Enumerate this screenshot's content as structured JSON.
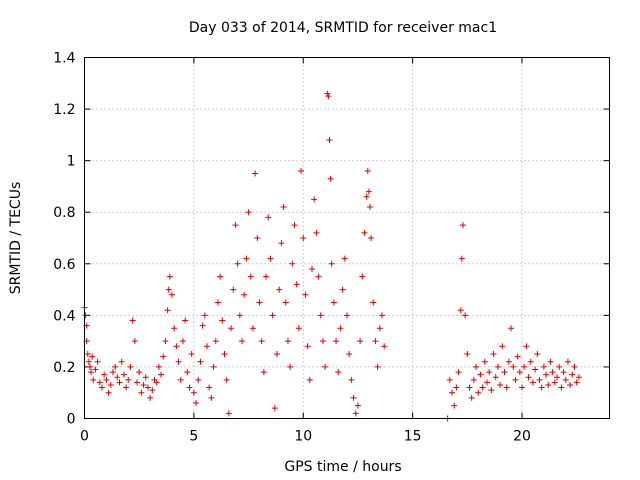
{
  "chart_data": {
    "type": "scatter",
    "title": "Day 033 of 2014, SRMTID for receiver mac1",
    "xlabel": "GPS time / hours",
    "ylabel": "SRMTID / TECUs",
    "xlim": [
      0,
      24
    ],
    "ylim": [
      0,
      1.4
    ],
    "xticks": [
      0,
      5,
      10,
      15,
      20
    ],
    "yticks": [
      0,
      0.2,
      0.4,
      0.6,
      0.8,
      1,
      1.2,
      1.4
    ],
    "xtick_labels": [
      "0",
      "5",
      "10",
      "15",
      "20"
    ],
    "ytick_labels": [
      "0",
      "0.2",
      "0.4",
      "0.6",
      "0.8",
      "1",
      "1.2",
      "1.4"
    ],
    "marker": "+",
    "color": "#e00000",
    "grid": true,
    "series": [
      {
        "name": "mac1",
        "points": [
          [
            0.0,
            0.43
          ],
          [
            0.05,
            0.4
          ],
          [
            0.1,
            0.36
          ],
          [
            0.1,
            0.3
          ],
          [
            0.15,
            0.25
          ],
          [
            0.2,
            0.22
          ],
          [
            0.25,
            0.2
          ],
          [
            0.3,
            0.18
          ],
          [
            0.35,
            0.24
          ],
          [
            0.4,
            0.15
          ],
          [
            0.5,
            0.19
          ],
          [
            0.6,
            0.22
          ],
          [
            0.7,
            0.14
          ],
          [
            0.8,
            0.12
          ],
          [
            0.9,
            0.17
          ],
          [
            1.0,
            0.15
          ],
          [
            1.1,
            0.1
          ],
          [
            1.2,
            0.13
          ],
          [
            1.3,
            0.18
          ],
          [
            1.4,
            0.2
          ],
          [
            1.5,
            0.16
          ],
          [
            1.6,
            0.14
          ],
          [
            1.7,
            0.22
          ],
          [
            1.8,
            0.17
          ],
          [
            1.9,
            0.12
          ],
          [
            2.0,
            0.15
          ],
          [
            2.1,
            0.2
          ],
          [
            2.2,
            0.38
          ],
          [
            2.3,
            0.3
          ],
          [
            2.4,
            0.14
          ],
          [
            2.5,
            0.18
          ],
          [
            2.6,
            0.1
          ],
          [
            2.7,
            0.13
          ],
          [
            2.8,
            0.16
          ],
          [
            2.9,
            0.12
          ],
          [
            3.0,
            0.08
          ],
          [
            3.1,
            0.11
          ],
          [
            3.2,
            0.15
          ],
          [
            3.3,
            0.14
          ],
          [
            3.4,
            0.2
          ],
          [
            3.5,
            0.17
          ],
          [
            3.6,
            0.24
          ],
          [
            3.7,
            0.3
          ],
          [
            3.8,
            0.42
          ],
          [
            3.85,
            0.5
          ],
          [
            3.9,
            0.55
          ],
          [
            4.0,
            0.48
          ],
          [
            4.1,
            0.35
          ],
          [
            4.2,
            0.28
          ],
          [
            4.3,
            0.22
          ],
          [
            4.4,
            0.15
          ],
          [
            4.5,
            0.3
          ],
          [
            4.6,
            0.38
          ],
          [
            4.7,
            0.18
          ],
          [
            4.8,
            0.12
          ],
          [
            4.9,
            0.25
          ],
          [
            5.0,
            0.1
          ],
          [
            5.1,
            0.06
          ],
          [
            5.2,
            0.15
          ],
          [
            5.3,
            0.22
          ],
          [
            5.4,
            0.36
          ],
          [
            5.5,
            0.4
          ],
          [
            5.6,
            0.28
          ],
          [
            5.7,
            0.12
          ],
          [
            5.8,
            0.08
          ],
          [
            5.9,
            0.2
          ],
          [
            6.0,
            0.3
          ],
          [
            6.1,
            0.45
          ],
          [
            6.2,
            0.55
          ],
          [
            6.3,
            0.38
          ],
          [
            6.4,
            0.25
          ],
          [
            6.5,
            0.15
          ],
          [
            6.6,
            0.02
          ],
          [
            6.7,
            0.35
          ],
          [
            6.8,
            0.5
          ],
          [
            6.9,
            0.75
          ],
          [
            7.0,
            0.6
          ],
          [
            7.1,
            0.4
          ],
          [
            7.2,
            0.3
          ],
          [
            7.3,
            0.48
          ],
          [
            7.4,
            0.62
          ],
          [
            7.5,
            0.8
          ],
          [
            7.6,
            0.55
          ],
          [
            7.7,
            0.35
          ],
          [
            7.8,
            0.95
          ],
          [
            7.9,
            0.7
          ],
          [
            8.0,
            0.45
          ],
          [
            8.1,
            0.3
          ],
          [
            8.2,
            0.18
          ],
          [
            8.3,
            0.55
          ],
          [
            8.4,
            0.78
          ],
          [
            8.5,
            0.62
          ],
          [
            8.6,
            0.4
          ],
          [
            8.7,
            0.04
          ],
          [
            8.8,
            0.25
          ],
          [
            8.9,
            0.5
          ],
          [
            9.0,
            0.68
          ],
          [
            9.1,
            0.82
          ],
          [
            9.2,
            0.45
          ],
          [
            9.3,
            0.3
          ],
          [
            9.4,
            0.2
          ],
          [
            9.5,
            0.6
          ],
          [
            9.6,
            0.75
          ],
          [
            9.7,
            0.52
          ],
          [
            9.8,
            0.35
          ],
          [
            9.9,
            0.96
          ],
          [
            10.0,
            0.7
          ],
          [
            10.1,
            0.48
          ],
          [
            10.2,
            0.28
          ],
          [
            10.3,
            0.15
          ],
          [
            10.4,
            0.58
          ],
          [
            10.5,
            0.85
          ],
          [
            10.6,
            0.72
          ],
          [
            10.7,
            0.55
          ],
          [
            10.8,
            0.4
          ],
          [
            10.9,
            0.3
          ],
          [
            11.0,
            0.2
          ],
          [
            11.1,
            1.26
          ],
          [
            11.15,
            1.25
          ],
          [
            11.2,
            1.08
          ],
          [
            11.25,
            0.93
          ],
          [
            11.3,
            0.6
          ],
          [
            11.4,
            0.45
          ],
          [
            11.5,
            0.3
          ],
          [
            11.6,
            0.18
          ],
          [
            11.7,
            0.35
          ],
          [
            11.8,
            0.5
          ],
          [
            11.9,
            0.62
          ],
          [
            12.0,
            0.4
          ],
          [
            12.1,
            0.25
          ],
          [
            12.2,
            0.15
          ],
          [
            12.3,
            0.08
          ],
          [
            12.4,
            0.02
          ],
          [
            12.5,
            0.05
          ],
          [
            12.6,
            0.3
          ],
          [
            12.7,
            0.55
          ],
          [
            12.8,
            0.72
          ],
          [
            12.9,
            0.86
          ],
          [
            12.95,
            0.96
          ],
          [
            13.0,
            0.88
          ],
          [
            13.05,
            0.82
          ],
          [
            13.1,
            0.7
          ],
          [
            13.2,
            0.45
          ],
          [
            13.3,
            0.3
          ],
          [
            13.4,
            0.2
          ],
          [
            13.5,
            0.35
          ],
          [
            13.6,
            0.4
          ],
          [
            13.7,
            0.28
          ],
          [
            16.6,
            0.0
          ],
          [
            16.7,
            0.15
          ],
          [
            16.8,
            0.1
          ],
          [
            16.9,
            0.05
          ],
          [
            17.0,
            0.12
          ],
          [
            17.1,
            0.18
          ],
          [
            17.2,
            0.42
          ],
          [
            17.25,
            0.62
          ],
          [
            17.3,
            0.75
          ],
          [
            17.4,
            0.4
          ],
          [
            17.5,
            0.25
          ],
          [
            17.6,
            0.12
          ],
          [
            17.7,
            0.08
          ],
          [
            17.8,
            0.15
          ],
          [
            17.9,
            0.2
          ],
          [
            18.0,
            0.1
          ],
          [
            18.1,
            0.17
          ],
          [
            18.2,
            0.12
          ],
          [
            18.3,
            0.22
          ],
          [
            18.4,
            0.14
          ],
          [
            18.5,
            0.18
          ],
          [
            18.6,
            0.11
          ],
          [
            18.7,
            0.25
          ],
          [
            18.8,
            0.16
          ],
          [
            18.9,
            0.2
          ],
          [
            19.0,
            0.13
          ],
          [
            19.1,
            0.28
          ],
          [
            19.2,
            0.18
          ],
          [
            19.3,
            0.12
          ],
          [
            19.4,
            0.22
          ],
          [
            19.5,
            0.35
          ],
          [
            19.6,
            0.2
          ],
          [
            19.7,
            0.15
          ],
          [
            19.8,
            0.24
          ],
          [
            19.9,
            0.18
          ],
          [
            20.0,
            0.12
          ],
          [
            20.1,
            0.2
          ],
          [
            20.2,
            0.28
          ],
          [
            20.3,
            0.16
          ],
          [
            20.4,
            0.22
          ],
          [
            20.5,
            0.14
          ],
          [
            20.6,
            0.19
          ],
          [
            20.7,
            0.25
          ],
          [
            20.8,
            0.15
          ],
          [
            20.9,
            0.12
          ],
          [
            21.0,
            0.2
          ],
          [
            21.1,
            0.17
          ],
          [
            21.2,
            0.13
          ],
          [
            21.3,
            0.22
          ],
          [
            21.4,
            0.18
          ],
          [
            21.5,
            0.14
          ],
          [
            21.6,
            0.16
          ],
          [
            21.7,
            0.2
          ],
          [
            21.8,
            0.12
          ],
          [
            21.9,
            0.18
          ],
          [
            22.0,
            0.15
          ],
          [
            22.1,
            0.22
          ],
          [
            22.2,
            0.13
          ],
          [
            22.3,
            0.17
          ],
          [
            22.4,
            0.2
          ],
          [
            22.5,
            0.14
          ],
          [
            22.6,
            0.16
          ]
        ]
      }
    ]
  }
}
